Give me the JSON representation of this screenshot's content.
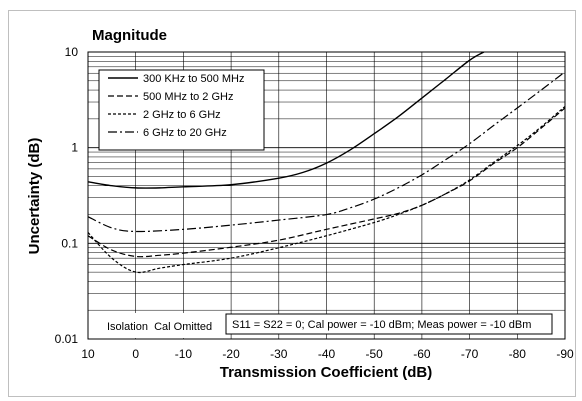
{
  "chart_data": {
    "type": "line",
    "title": "Magnitude",
    "xlabel": "Transmission Coefficient (dB)",
    "ylabel": "Uncertainty (dB)",
    "xlim": [
      10,
      -90
    ],
    "ylim": [
      0.01,
      10
    ],
    "yscale": "log",
    "grid": true,
    "legend_position": "top-left",
    "x_ticks": [
      "10",
      "0",
      "-10",
      "-20",
      "-30",
      "-40",
      "-50",
      "-60",
      "-70",
      "-80",
      "-90"
    ],
    "y_ticks": [
      "10",
      "1",
      "0.1",
      "0.01"
    ],
    "series": [
      {
        "name": "300 KHz to 500 MHz",
        "style": "solid",
        "points": [
          [
            10,
            0.44
          ],
          [
            5,
            0.4
          ],
          [
            0,
            0.38
          ],
          [
            -5,
            0.38
          ],
          [
            -10,
            0.39
          ],
          [
            -20,
            0.41
          ],
          [
            -30,
            0.48
          ],
          [
            -35,
            0.55
          ],
          [
            -40,
            0.69
          ],
          [
            -45,
            0.95
          ],
          [
            -50,
            1.4
          ],
          [
            -55,
            2.1
          ],
          [
            -60,
            3.3
          ],
          [
            -65,
            5.2
          ],
          [
            -70,
            8.2
          ],
          [
            -73,
            10
          ]
        ]
      },
      {
        "name": "500 MHz to 2 GHz",
        "style": "dashed",
        "points": [
          [
            10,
            0.12
          ],
          [
            5,
            0.085
          ],
          [
            0,
            0.073
          ],
          [
            -5,
            0.075
          ],
          [
            -10,
            0.079
          ],
          [
            -20,
            0.091
          ],
          [
            -30,
            0.108
          ],
          [
            -40,
            0.14
          ],
          [
            -50,
            0.18
          ],
          [
            -55,
            0.205
          ],
          [
            -60,
            0.25
          ],
          [
            -65,
            0.33
          ],
          [
            -70,
            0.45
          ],
          [
            -75,
            0.68
          ],
          [
            -80,
            1.0
          ],
          [
            -85,
            1.6
          ],
          [
            -90,
            2.6
          ]
        ]
      },
      {
        "name": "2 GHz to 6 GHz",
        "style": "dotted",
        "points": [
          [
            10,
            0.13
          ],
          [
            5,
            0.07
          ],
          [
            0,
            0.05
          ],
          [
            -5,
            0.055
          ],
          [
            -10,
            0.06
          ],
          [
            -20,
            0.07
          ],
          [
            -30,
            0.09
          ],
          [
            -40,
            0.12
          ],
          [
            -50,
            0.165
          ],
          [
            -55,
            0.2
          ],
          [
            -60,
            0.25
          ],
          [
            -65,
            0.33
          ],
          [
            -70,
            0.46
          ],
          [
            -75,
            0.7
          ],
          [
            -80,
            1.05
          ],
          [
            -85,
            1.65
          ],
          [
            -90,
            2.7
          ]
        ]
      },
      {
        "name": "6 GHz to 20 GHz",
        "style": "dashdot",
        "points": [
          [
            10,
            0.19
          ],
          [
            5,
            0.145
          ],
          [
            0,
            0.133
          ],
          [
            -10,
            0.14
          ],
          [
            -20,
            0.155
          ],
          [
            -30,
            0.175
          ],
          [
            -40,
            0.2
          ],
          [
            -45,
            0.235
          ],
          [
            -50,
            0.29
          ],
          [
            -55,
            0.38
          ],
          [
            -60,
            0.52
          ],
          [
            -65,
            0.75
          ],
          [
            -70,
            1.1
          ],
          [
            -75,
            1.7
          ],
          [
            -80,
            2.6
          ],
          [
            -85,
            4.0
          ],
          [
            -90,
            6.2
          ]
        ]
      }
    ],
    "annotations": {
      "left_note": "Isolation  Cal Omitted",
      "right_note": "S11 = S22 = 0; Cal power = -10 dBm; Meas power = -10 dBm"
    }
  }
}
